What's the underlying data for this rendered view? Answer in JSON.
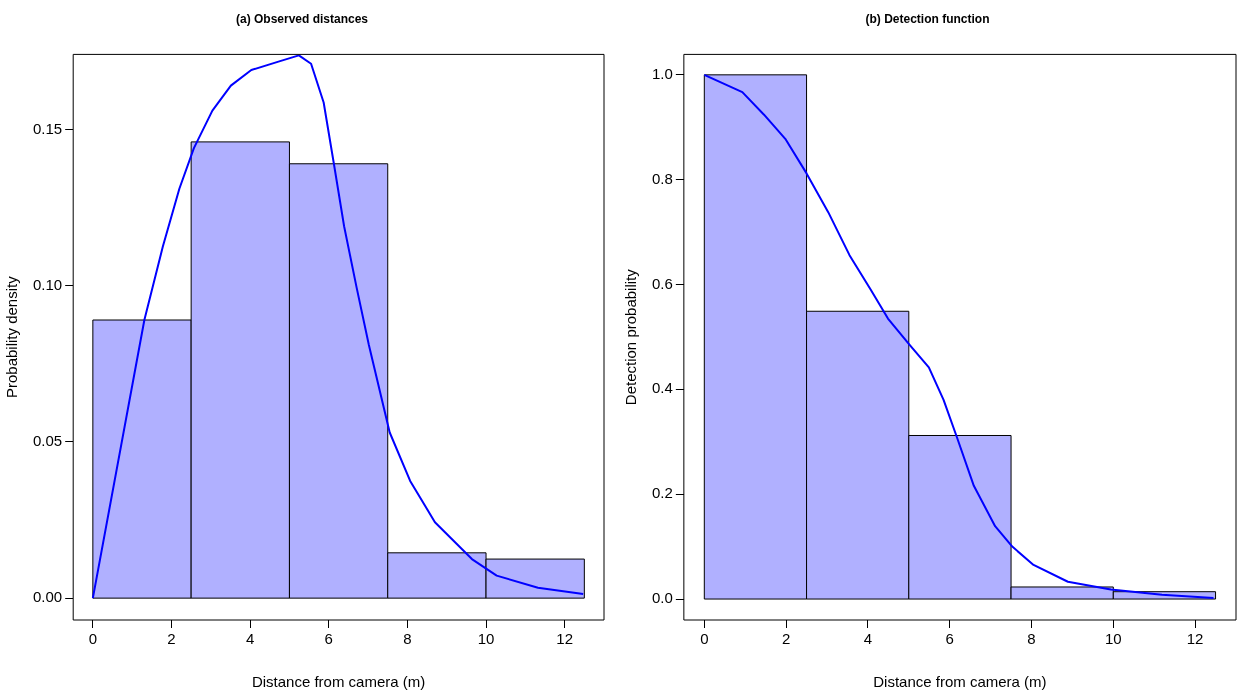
{
  "chart_data": [
    {
      "type": "histogram",
      "title": "(a) Observed distances",
      "xlabel": "Distance from camera (m)",
      "ylabel": "Probability density",
      "xlim": [
        -0.5,
        13
      ],
      "ylim": [
        -0.007,
        0.174
      ],
      "xticks": [
        0,
        2,
        4,
        6,
        8,
        10,
        12
      ],
      "yticks": [
        {
          "value": 0,
          "label": "0.00"
        },
        {
          "value": 0.05,
          "label": "0.05"
        },
        {
          "value": 0.1,
          "label": "0.10"
        },
        {
          "value": 0.15,
          "label": "0.15"
        }
      ],
      "grid": false,
      "legend": false,
      "series": [
        {
          "color": "#b0b0ff",
          "bins": [
            0,
            2.5,
            5,
            7.5,
            10,
            12.5
          ],
          "values": [
            0.089,
            0.146,
            0.139,
            0.0145,
            0.0125
          ]
        },
        {
          "type": "line",
          "color": "#0000ff",
          "x": [
            0,
            1.31,
            1.78,
            2.2,
            2.57,
            3.04,
            3.51,
            4.03,
            4.72,
            5.24,
            5.55,
            5.87,
            6.13,
            6.39,
            6.71,
            7.02,
            7.55,
            8.07,
            8.7,
            9.64,
            10.27,
            11.32,
            12.47
          ],
          "values": [
            0,
            0.089,
            0.1125,
            0.131,
            0.144,
            0.156,
            0.164,
            0.169,
            0.1717,
            0.1737,
            0.171,
            0.1586,
            0.139,
            0.119,
            0.0993,
            0.081,
            0.053,
            0.0375,
            0.0243,
            0.0125,
            0.0072,
            0.0033,
            0.0013
          ]
        }
      ]
    },
    {
      "type": "histogram",
      "title": "(b) Detection function",
      "xlabel": "Distance from camera (m)",
      "ylabel": "Detection probability",
      "xlim": [
        -0.5,
        13
      ],
      "ylim": [
        -0.04,
        1.039
      ],
      "xticks": [
        0,
        2,
        4,
        6,
        8,
        10,
        12
      ],
      "yticks": [
        {
          "value": 0,
          "label": "0.0"
        },
        {
          "value": 0.2,
          "label": "0.2"
        },
        {
          "value": 0.4,
          "label": "0.4"
        },
        {
          "value": 0.6,
          "label": "0.6"
        },
        {
          "value": 0.8,
          "label": "0.8"
        },
        {
          "value": 1,
          "label": "1.0"
        }
      ],
      "grid": false,
      "legend": false,
      "series": [
        {
          "color": "#b0b0ff",
          "bins": [
            0,
            2.5,
            5,
            7.5,
            10,
            12.5
          ],
          "values": [
            1.0,
            0.549,
            0.312,
            0.023,
            0.014
          ]
        },
        {
          "type": "line",
          "color": "#0000ff",
          "x": [
            0,
            0.93,
            1.46,
            1.98,
            2.5,
            3.03,
            3.55,
            4.07,
            4.49,
            5.02,
            5.49,
            5.85,
            6.17,
            6.59,
            7.11,
            7.53,
            8.05,
            8.89,
            9.94,
            11.19,
            12.45
          ],
          "values": [
            1.0,
            0.967,
            0.924,
            0.878,
            0.812,
            0.738,
            0.656,
            0.59,
            0.535,
            0.485,
            0.442,
            0.38,
            0.31,
            0.216,
            0.139,
            0.1,
            0.065,
            0.033,
            0.018,
            0.008,
            0.002
          ]
        }
      ]
    }
  ]
}
